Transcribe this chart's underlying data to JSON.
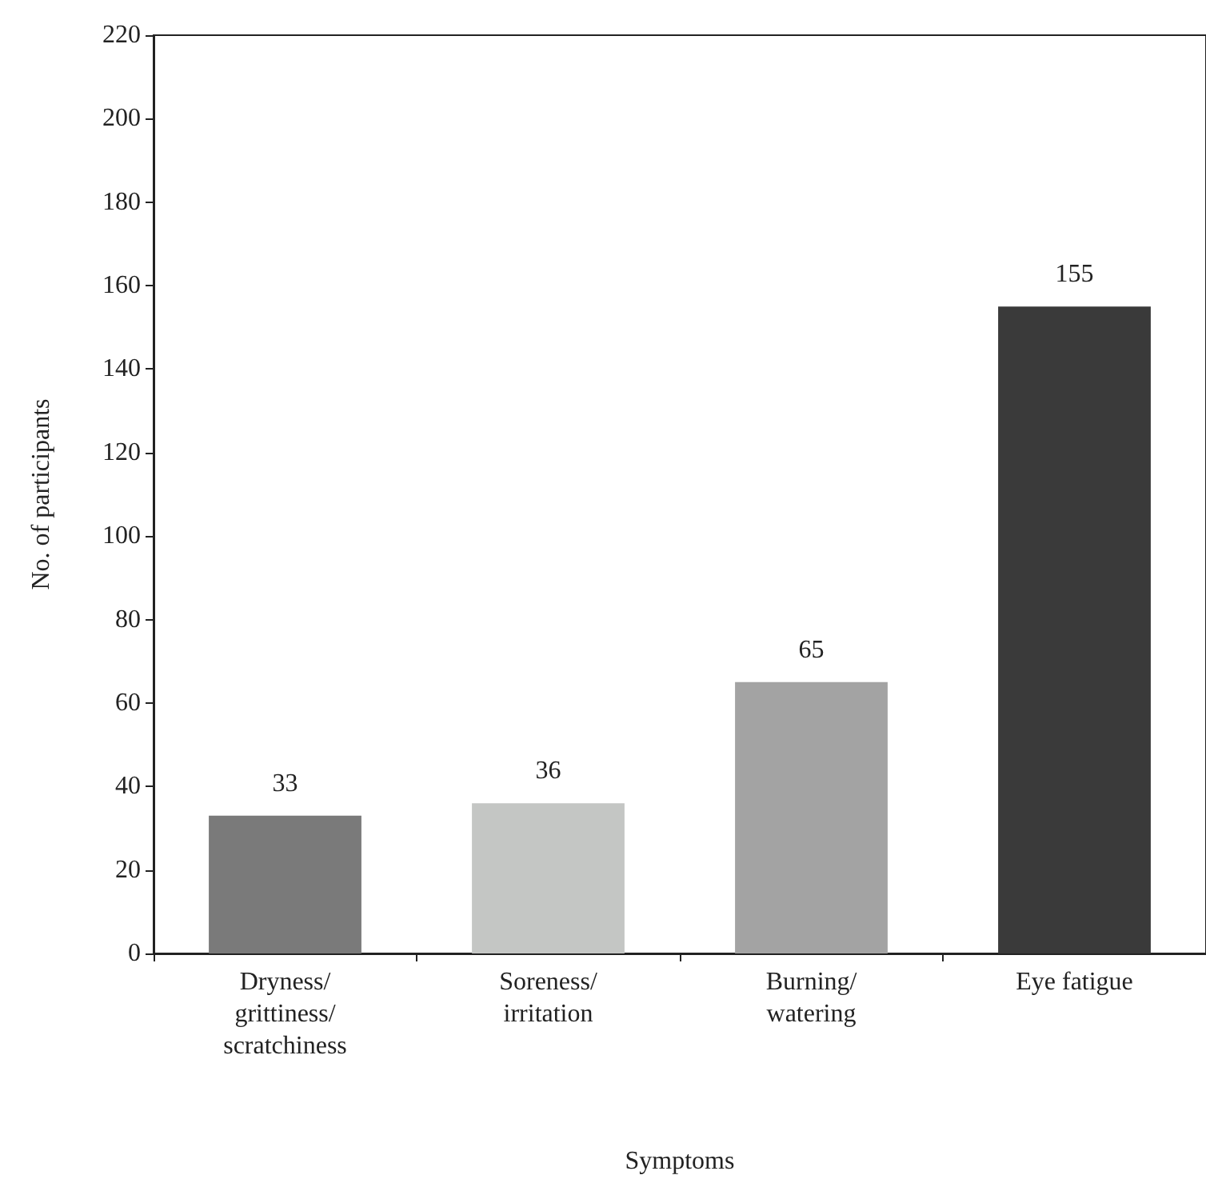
{
  "chart_data": {
    "type": "bar",
    "xlabel": "Symptoms",
    "ylabel": "No. of participants",
    "categories": [
      "Dryness/\ngrittiness/\nscratchiness",
      "Soreness/\nirritation",
      "Burning/\nwatering",
      "Eye fatigue"
    ],
    "values": [
      33,
      36,
      65,
      155
    ],
    "colors": [
      "#7a7a7a",
      "#c4c6c4",
      "#a3a3a3",
      "#3a3a3a"
    ],
    "ylim": [
      0,
      220
    ],
    "yticks": [
      0,
      20,
      40,
      60,
      80,
      100,
      120,
      140,
      160,
      180,
      200,
      220
    ],
    "data_labels": true,
    "grid": false
  }
}
